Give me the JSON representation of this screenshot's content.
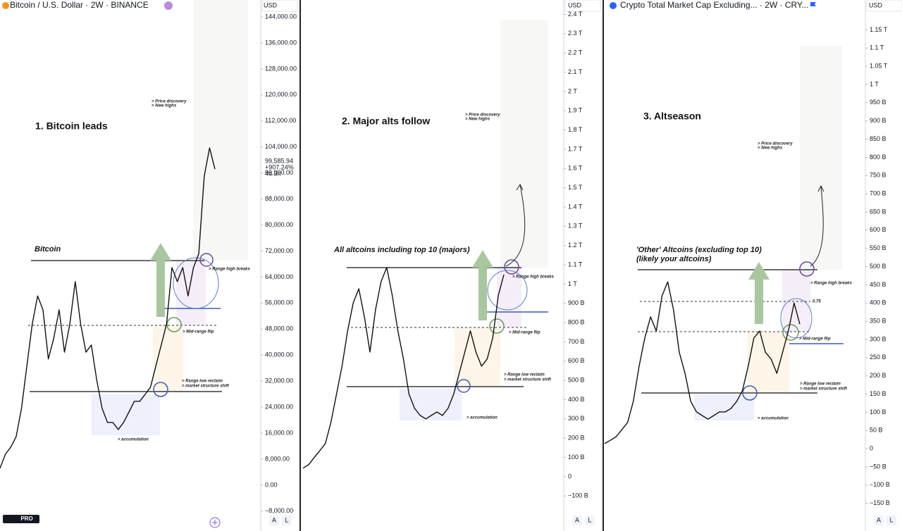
{
  "logo": "PRO",
  "chart_data": [
    {
      "type": "line",
      "title": "Bitcoin / U.S. Dollar · 2W · BINANCE",
      "axis_label": "USD",
      "color": "#111111",
      "price_label": [
        "99,585.94",
        "+907.24%",
        "4d 3h"
      ],
      "scale_buttons": [
        "A",
        "L"
      ],
      "annotations": [
        "1. Bitcoin leads",
        "Bitcoin",
        "> Price discovery",
        "> New highs",
        "> Range high breaks",
        "> Mid-range flip",
        "> Range low reclaim",
        "> market structure shift",
        "> accumulation"
      ],
      "ylim": [
        -14100,
        149200
      ],
      "yticks": [
        {
          "value": 144000,
          "label": "144,000.00"
        },
        {
          "value": 136000,
          "label": "136,000.00"
        },
        {
          "value": 128000,
          "label": "128,000.00"
        },
        {
          "value": 120000,
          "label": "120,000.00"
        },
        {
          "value": 112000,
          "label": "112,000.00"
        },
        {
          "value": 104000,
          "label": "104,000.00"
        },
        {
          "value": 96000,
          "label": "96,000.00"
        },
        {
          "value": 88000,
          "label": "88,000.00"
        },
        {
          "value": 80000,
          "label": "80,000.00"
        },
        {
          "value": 72000,
          "label": "72,000.00"
        },
        {
          "value": 64000,
          "label": "64,000.00"
        },
        {
          "value": 56000,
          "label": "56,000.00"
        },
        {
          "value": 48000,
          "label": "48,000.00"
        },
        {
          "value": 40000,
          "label": "40,000.00"
        },
        {
          "value": 32000,
          "label": "32,000.00"
        },
        {
          "value": 24000,
          "label": "24,000.00"
        },
        {
          "value": 16000,
          "label": "16,000.00"
        },
        {
          "value": 8000,
          "label": "8,000.00"
        },
        {
          "value": 0,
          "label": "0.00"
        },
        {
          "value": -8000,
          "label": "−8,000.00"
        }
      ],
      "values": [
        5200,
        9500,
        11700,
        14900,
        23600,
        36600,
        49600,
        58200,
        53900,
        38800,
        45200,
        53900,
        40900,
        49600,
        62600,
        49600,
        40900,
        43100,
        32300,
        23600,
        19300,
        19300,
        17100,
        19300,
        22500,
        25800,
        25800,
        27900,
        30100,
        36600,
        43100,
        49600,
        66900,
        62600,
        66900,
        58200,
        66900,
        71200,
        95000,
        103700,
        97200
      ]
    },
    {
      "type": "line",
      "axis_label": "USD",
      "color": "#111111",
      "scale_buttons": [
        "A",
        "L"
      ],
      "annotations": [
        "2. Major alts follow",
        "All altcoins including top 10 (majors)",
        "> Price discovery",
        "> New highs",
        "> Range high breaks",
        "> Mid-range flip",
        "> Range low reclaim",
        "> market structure shift",
        "> accumulation"
      ],
      "ylim": [
        -282,
        2475
      ],
      "yticks": [
        {
          "value": 2400,
          "label": "2.4 T"
        },
        {
          "value": 2300,
          "label": "2.3 T"
        },
        {
          "value": 2200,
          "label": "2.2 T"
        },
        {
          "value": 2100,
          "label": "2.1 T"
        },
        {
          "value": 2000,
          "label": "2 T"
        },
        {
          "value": 1900,
          "label": "1.9 T"
        },
        {
          "value": 1800,
          "label": "1.8 T"
        },
        {
          "value": 1700,
          "label": "1.7 T"
        },
        {
          "value": 1600,
          "label": "1.6 T"
        },
        {
          "value": 1500,
          "label": "1.5 T"
        },
        {
          "value": 1400,
          "label": "1.4 T"
        },
        {
          "value": 1300,
          "label": "1.3 T"
        },
        {
          "value": 1200,
          "label": "1.2 T"
        },
        {
          "value": 1100,
          "label": "1.1 T"
        },
        {
          "value": 1000,
          "label": "1 T"
        },
        {
          "value": 900,
          "label": "900 B"
        },
        {
          "value": 800,
          "label": "800 B"
        },
        {
          "value": 700,
          "label": "700 B"
        },
        {
          "value": 600,
          "label": "600 B"
        },
        {
          "value": 500,
          "label": "500 B"
        },
        {
          "value": 400,
          "label": "400 B"
        },
        {
          "value": 300,
          "label": "300 B"
        },
        {
          "value": 200,
          "label": "200 B"
        },
        {
          "value": 100,
          "label": "100 B"
        },
        0,
        {
          "value": -100,
          "label": "−100 B"
        }
      ],
      "values": [
        44,
        62,
        99,
        135,
        172,
        282,
        428,
        574,
        757,
        903,
        976,
        830,
        647,
        867,
        1013,
        1086,
        940,
        757,
        611,
        428,
        355,
        318,
        300,
        318,
        336,
        318,
        355,
        428,
        537,
        647,
        757,
        647,
        574,
        611,
        720,
        940,
        1049
      ]
    },
    {
      "type": "line",
      "title": "Crypto Total Market Cap Excluding... · 2W · CRY...",
      "axis_label": "USD",
      "color": "#111111",
      "scale_buttons": [
        "A",
        "L"
      ],
      "annotations": [
        "3. Altseason",
        "'Other' Altcoins (excluding top 10)",
        "(likely your altcoins)",
        "> Price discovery",
        "> New highs",
        "> Range high breaks",
        "0.75",
        "> Mid-range flip",
        "> Range low reclaim",
        "> market structure shift",
        "> accumulation"
      ],
      "ylim": [
        -226,
        1232
      ],
      "yticks": [
        {
          "value": 1150,
          "label": "1.15 T"
        },
        {
          "value": 1100,
          "label": "1.1 T"
        },
        {
          "value": 1050,
          "label": "1.05 T"
        },
        {
          "value": 1000,
          "label": "1 T"
        },
        {
          "value": 950,
          "label": "950 B"
        },
        {
          "value": 900,
          "label": "900 B"
        },
        {
          "value": 850,
          "label": "850 B"
        },
        {
          "value": 800,
          "label": "800 B"
        },
        {
          "value": 750,
          "label": "750 B"
        },
        {
          "value": 700,
          "label": "700 B"
        },
        {
          "value": 650,
          "label": "650 B"
        },
        {
          "value": 600,
          "label": "600 B"
        },
        {
          "value": 550,
          "label": "550 B"
        },
        {
          "value": 500,
          "label": "500 B"
        },
        {
          "value": 450,
          "label": "450 B"
        },
        {
          "value": 400,
          "label": "400 B"
        },
        {
          "value": 350,
          "label": "350 B"
        },
        {
          "value": 300,
          "label": "300 B"
        },
        {
          "value": 250,
          "label": "250 B"
        },
        {
          "value": 200,
          "label": "200 B"
        },
        {
          "value": 150,
          "label": "150 B"
        },
        {
          "value": 100,
          "label": "100 B"
        },
        {
          "value": 50,
          "label": "50 B"
        },
        0,
        {
          "value": -50,
          "label": "−50 B"
        },
        {
          "value": -100,
          "label": "−100 B"
        },
        {
          "value": -150,
          "label": "−150 B"
        }
      ],
      "values": [
        14,
        23,
        33,
        52,
        72,
        130,
        226,
        304,
        362,
        323,
        420,
        458,
        381,
        265,
        207,
        130,
        101,
        91,
        81,
        91,
        101,
        101,
        110,
        130,
        159,
        226,
        304,
        323,
        265,
        246,
        207,
        265,
        323,
        400,
        342
      ]
    }
  ]
}
